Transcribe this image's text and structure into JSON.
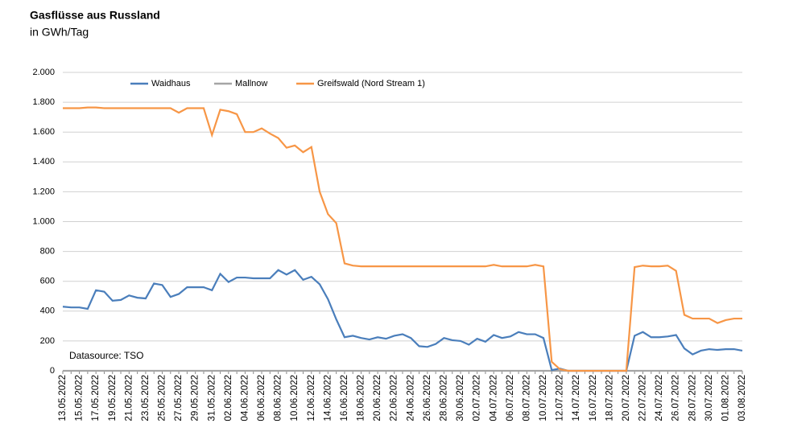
{
  "chart_data": {
    "type": "line",
    "title": "Gasflüsse aus Russland",
    "subtitle": "in GWh/Tag",
    "annotation": "Datasource: TSO",
    "categories": [
      "13.05.2022",
      null,
      "15.05.2022",
      null,
      "17.05.2022",
      null,
      "19.05.2022",
      null,
      "21.05.2022",
      null,
      "23.05.2022",
      null,
      "25.05.2022",
      null,
      "27.05.2022",
      null,
      "29.05.2022",
      null,
      "31.05.2022",
      null,
      "02.06.2022",
      null,
      "04.06.2022",
      null,
      "06.06.2022",
      null,
      "08.06.2022",
      null,
      "10.06.2022",
      null,
      "12.06.2022",
      null,
      "14.06.2022",
      null,
      "16.06.2022",
      null,
      "18.06.2022",
      null,
      "20.06.2022",
      null,
      "22.06.2022",
      null,
      "24.06.2022",
      null,
      "26.06.2022",
      null,
      "28.06.2022",
      null,
      "30.06.2022",
      null,
      "02.07.2022",
      null,
      "04.07.2022",
      null,
      "06.07.2022",
      null,
      "08.07.2022",
      null,
      "10.07.2022",
      null,
      "12.07.2022",
      null,
      "14.07.2022",
      null,
      "16.07.2022",
      null,
      "18.07.2022",
      null,
      "20.07.2022",
      null,
      "22.07.2022",
      null,
      "24.07.2022",
      null,
      "26.07.2022",
      null,
      "28.07.2022",
      null,
      "30.07.2022",
      null,
      "01.08.2022",
      null,
      "03.08.2022"
    ],
    "series": [
      {
        "name": "Waidhaus",
        "color": "#4a7ebb",
        "values": [
          430,
          425,
          425,
          415,
          540,
          530,
          470,
          475,
          505,
          490,
          485,
          585,
          575,
          495,
          515,
          560,
          560,
          560,
          540,
          650,
          595,
          625,
          625,
          620,
          620,
          620,
          675,
          645,
          675,
          610,
          630,
          580,
          480,
          345,
          225,
          235,
          220,
          210,
          225,
          215,
          235,
          245,
          220,
          165,
          160,
          180,
          220,
          205,
          200,
          175,
          215,
          195,
          240,
          220,
          230,
          260,
          245,
          245,
          220,
          5,
          15,
          0,
          0,
          0,
          0,
          0,
          0,
          0,
          0,
          235,
          260,
          225,
          225,
          230,
          240,
          150,
          110,
          135,
          145,
          140,
          145,
          145,
          135
        ]
      },
      {
        "name": "Mallnow",
        "color": "#a5a5a5",
        "values": [
          0,
          0,
          0,
          0,
          0,
          0,
          0,
          0,
          0,
          0,
          0,
          0,
          0,
          0,
          0,
          0,
          0,
          0,
          0,
          0,
          0,
          0,
          0,
          0,
          0,
          0,
          0,
          0,
          0,
          0,
          0,
          0,
          0,
          0,
          0,
          0,
          0,
          0,
          0,
          0,
          0,
          0,
          0,
          0,
          0,
          0,
          0,
          0,
          0,
          0,
          0,
          0,
          0,
          0,
          0,
          0,
          0,
          0,
          0,
          0,
          0,
          0,
          0,
          0,
          0,
          0,
          0,
          0,
          0,
          0,
          0,
          0,
          0,
          0,
          0,
          0,
          0,
          0,
          0,
          0,
          0,
          0,
          0
        ]
      },
      {
        "name": "Greifswald (Nord Stream 1)",
        "color": "#f79646",
        "values": [
          1760,
          1760,
          1760,
          1765,
          1765,
          1760,
          1760,
          1760,
          1760,
          1760,
          1760,
          1760,
          1760,
          1760,
          1730,
          1760,
          1760,
          1760,
          1580,
          1750,
          1740,
          1720,
          1600,
          1600,
          1625,
          1590,
          1560,
          1495,
          1510,
          1465,
          1500,
          1200,
          1050,
          990,
          720,
          705,
          700,
          700,
          700,
          700,
          700,
          700,
          700,
          700,
          700,
          700,
          700,
          700,
          700,
          700,
          700,
          700,
          710,
          700,
          700,
          700,
          700,
          710,
          700,
          60,
          10,
          0,
          0,
          0,
          0,
          0,
          0,
          0,
          0,
          695,
          705,
          700,
          700,
          705,
          670,
          375,
          350,
          350,
          350,
          320,
          340,
          350,
          350
        ]
      }
    ],
    "ylim": [
      0,
      2000
    ],
    "yticks": [
      0,
      200,
      400,
      600,
      800,
      {
        "value": 1000,
        "label": "1.000"
      },
      {
        "value": 1200,
        "label": "1.200"
      },
      {
        "value": 1400,
        "label": "1.400"
      },
      {
        "value": 1600,
        "label": "1.600"
      },
      {
        "value": 1800,
        "label": "1.800"
      },
      {
        "value": 2000,
        "label": "2.000"
      }
    ],
    "grid": true
  }
}
